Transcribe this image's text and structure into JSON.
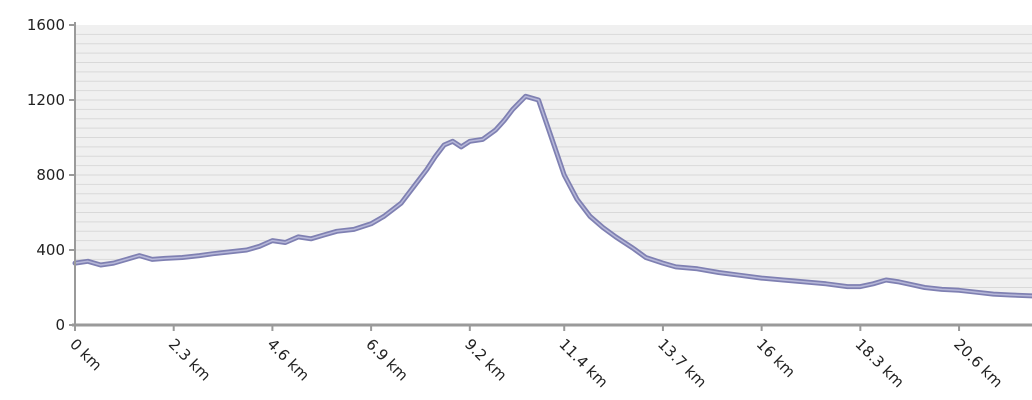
{
  "chart_data": {
    "type": "area",
    "title": "",
    "xlabel": "",
    "ylabel": "",
    "x_unit": "km",
    "xlim": [
      0,
      22.3
    ],
    "ylim": [
      0,
      1600
    ],
    "y_ticks": [
      "0",
      "400",
      "800",
      "1200",
      "1600"
    ],
    "x_ticks": [
      {
        "value": 0,
        "label": "0 km"
      },
      {
        "value": 2.3,
        "label": "2.3 km"
      },
      {
        "value": 4.6,
        "label": "4.6 km"
      },
      {
        "value": 6.9,
        "label": "6.9 km"
      },
      {
        "value": 9.2,
        "label": "9.2 km"
      },
      {
        "value": 11.4,
        "label": "11.4 km"
      },
      {
        "value": 13.7,
        "label": "13.7 km"
      },
      {
        "value": 16,
        "label": "16 km"
      },
      {
        "value": 18.3,
        "label": "18.3 km"
      },
      {
        "value": 20.6,
        "label": "20.6 km"
      }
    ],
    "grid": true,
    "series": [
      {
        "x": [
          0,
          0.3,
          0.6,
          0.9,
          1.2,
          1.5,
          1.8,
          2.1,
          2.5,
          2.9,
          3.2,
          3.6,
          4.0,
          4.3,
          4.6,
          4.9,
          5.2,
          5.5,
          5.8,
          6.1,
          6.5,
          6.9,
          7.2,
          7.6,
          7.9,
          8.2,
          8.4,
          8.6,
          8.8,
          9.0,
          9.2,
          9.5,
          9.8,
          10.0,
          10.2,
          10.5,
          10.8,
          11.1,
          11.4,
          11.7,
          12.0,
          12.3,
          12.6,
          13.0,
          13.3,
          13.7,
          14.0,
          14.5,
          15.0,
          15.5,
          16.0,
          16.5,
          17.0,
          17.5,
          18.0,
          18.3,
          18.6,
          18.9,
          19.2,
          19.5,
          19.8,
          20.2,
          20.6,
          21.0,
          21.4,
          21.8,
          22.3
        ],
        "y": [
          330,
          340,
          320,
          330,
          350,
          370,
          350,
          355,
          360,
          370,
          380,
          390,
          400,
          420,
          450,
          440,
          470,
          460,
          480,
          500,
          510,
          540,
          580,
          650,
          740,
          830,
          900,
          960,
          980,
          950,
          980,
          990,
          1040,
          1090,
          1150,
          1220,
          1200,
          1000,
          800,
          670,
          580,
          520,
          470,
          410,
          360,
          330,
          310,
          300,
          280,
          265,
          250,
          240,
          230,
          220,
          205,
          205,
          220,
          240,
          230,
          215,
          200,
          190,
          185,
          175,
          165,
          160,
          155
        ]
      }
    ],
    "colors": {
      "line": "#7f80b2",
      "line_highlight": "#b7b8d9",
      "fill": "#ffffff",
      "plot_bg": "#f0f0f0",
      "grid": "#d9d9d9",
      "axis": "#9a9a9a"
    }
  }
}
